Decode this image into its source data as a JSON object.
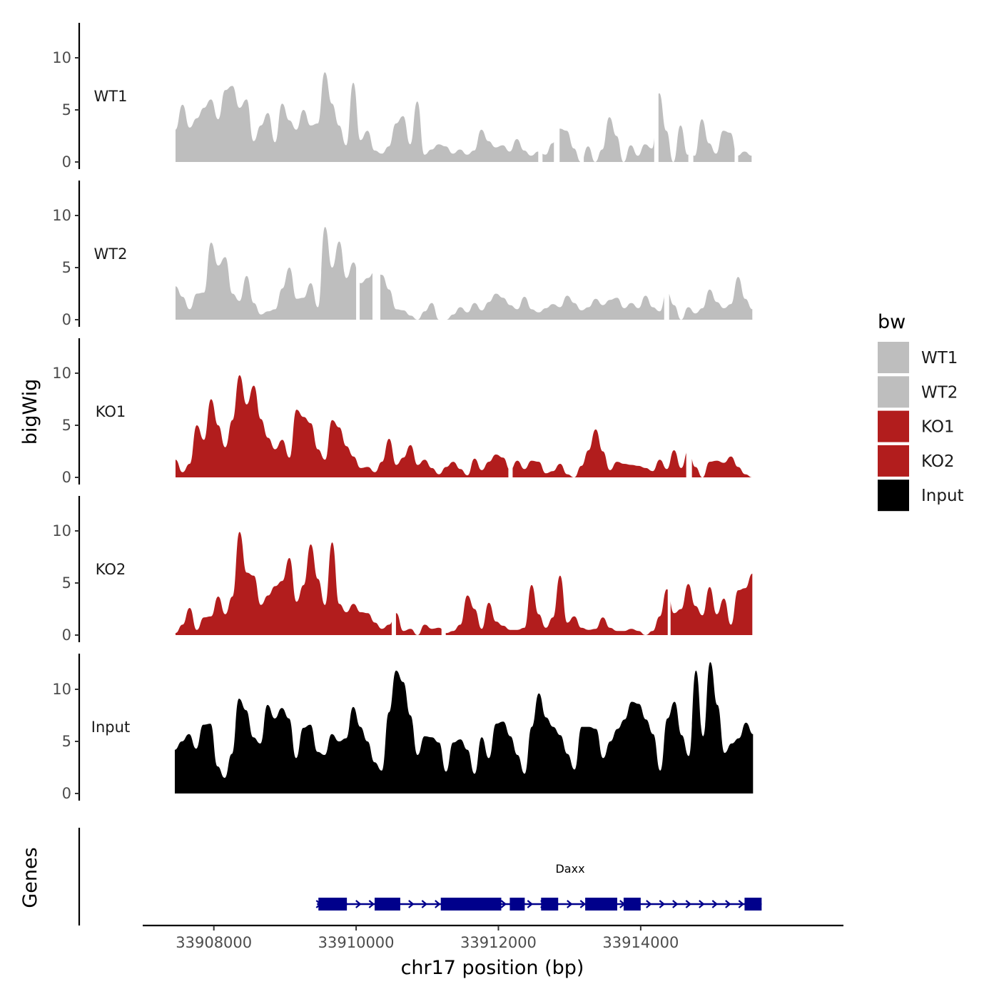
{
  "chart_data": {
    "type": "area",
    "title": "",
    "xlabel": "chr17 position (bp)",
    "ylabel": "bigWig",
    "genes_label": "Genes",
    "xlim": [
      33907000,
      33916850
    ],
    "x_ticks": [
      33908000,
      33910000,
      33912000,
      33914000
    ],
    "x_tick_labels": [
      "33908000",
      "33910000",
      "33912000",
      "33914000"
    ],
    "ylim": [
      0,
      13.5
    ],
    "y_ticks": [
      0,
      5,
      10
    ],
    "y_tick_labels": [
      "0",
      "5",
      "10"
    ],
    "legend": {
      "title": "bw",
      "placement": "right",
      "entries": [
        {
          "label": "WT1",
          "color": "#bebebe"
        },
        {
          "label": "WT2",
          "color": "#bebebe"
        },
        {
          "label": "KO1",
          "color": "#b21d1d"
        },
        {
          "label": "KO2",
          "color": "#b21d1d"
        },
        {
          "label": "Input",
          "color": "#000000"
        }
      ]
    },
    "series": [
      {
        "name": "WT1",
        "color": "#bebebe",
        "x_start": 33907460,
        "x_end": 33915560,
        "values": [
          3.1,
          5.5,
          3.3,
          4.2,
          5.2,
          6.0,
          4.1,
          6.9,
          7.3,
          5.2,
          6.0,
          2.0,
          3.5,
          4.7,
          1.9,
          5.6,
          4.0,
          3.1,
          5.0,
          3.5,
          3.7,
          8.6,
          5.6,
          3.5,
          1.6,
          7.6,
          2.1,
          3.0,
          1.1,
          0.8,
          1.5,
          3.7,
          4.4,
          1.7,
          5.8,
          0.7,
          1.2,
          1.7,
          1.5,
          0.8,
          1.2,
          0.7,
          1.1,
          3.1,
          2.0,
          1.4,
          1.6,
          1.0,
          2.2,
          1.1,
          0.6,
          1.0,
          0.7,
          1.8,
          3.2,
          3.0,
          1.3,
          0.0,
          1.5,
          0.0,
          1.2,
          4.3,
          2.5,
          0.0,
          1.6,
          0.6,
          1.7,
          1.3,
          6.6,
          3.0,
          0.0,
          3.5,
          0.7,
          0.6,
          4.1,
          1.8,
          0.8,
          3.0,
          2.8,
          0.6,
          1.0,
          0.6
        ],
        "gaps": [
          [
            33912560,
            33912620
          ],
          [
            33912780,
            33912860
          ],
          [
            33913150,
            33913200
          ],
          [
            33914190,
            33914250
          ],
          [
            33914670,
            33914740
          ],
          [
            33915320,
            33915370
          ]
        ]
      },
      {
        "name": "WT2",
        "color": "#bebebe",
        "x_start": 33907460,
        "x_end": 33915570,
        "values": [
          3.2,
          2.2,
          1.0,
          2.5,
          2.6,
          7.4,
          5.2,
          6.0,
          2.5,
          1.8,
          4.2,
          1.6,
          0.5,
          0.8,
          1.0,
          3.0,
          5.0,
          2.0,
          2.1,
          3.5,
          1.2,
          8.9,
          5.0,
          7.5,
          4.0,
          5.5,
          3.5,
          4.0,
          4.6,
          4.3,
          2.9,
          1.0,
          0.9,
          0.4,
          0.0,
          0.8,
          1.6,
          0.0,
          0.0,
          0.5,
          1.2,
          0.7,
          1.6,
          0.9,
          1.7,
          2.5,
          2.1,
          1.4,
          1.0,
          2.2,
          1.0,
          0.7,
          1.1,
          1.5,
          1.2,
          2.3,
          1.6,
          0.9,
          1.2,
          2.0,
          1.4,
          1.9,
          2.1,
          1.1,
          1.6,
          1.1,
          2.3,
          1.2,
          0.8,
          2.7,
          1.4,
          0.0,
          1.2,
          0.6,
          1.1,
          2.9,
          1.7,
          1.1,
          1.5,
          4.1,
          2.0,
          1.0
        ],
        "gaps": [
          [
            33910000,
            33910050
          ],
          [
            33910230,
            33910340
          ],
          [
            33914330,
            33914400
          ]
        ]
      },
      {
        "name": "KO1",
        "color": "#b21d1d",
        "x_start": 33907460,
        "x_end": 33915570,
        "values": [
          1.7,
          0.5,
          1.3,
          5.0,
          3.6,
          7.5,
          5.0,
          2.9,
          5.5,
          9.8,
          7.0,
          8.8,
          5.6,
          3.8,
          2.7,
          3.6,
          1.9,
          6.5,
          5.8,
          5.2,
          2.7,
          1.7,
          5.5,
          4.8,
          3.0,
          2.0,
          0.9,
          1.0,
          0.5,
          1.5,
          3.7,
          1.2,
          1.9,
          3.1,
          1.2,
          1.7,
          0.9,
          0.3,
          1.0,
          1.5,
          0.8,
          0.2,
          1.8,
          0.7,
          1.5,
          2.2,
          1.9,
          0.7,
          1.6,
          0.8,
          1.6,
          1.5,
          0.4,
          0.6,
          1.3,
          0.3,
          0.0,
          1.1,
          2.6,
          4.6,
          2.5,
          0.7,
          1.5,
          1.3,
          1.2,
          1.1,
          0.9,
          0.6,
          1.7,
          0.8,
          2.6,
          0.9,
          2.6,
          1.0,
          0.0,
          1.5,
          1.6,
          1.4,
          2.0,
          1.0,
          0.3,
          0.0
        ],
        "gaps": [
          [
            33912140,
            33912200
          ],
          [
            33914640,
            33914720
          ],
          [
            33916000,
            33916050
          ]
        ]
      },
      {
        "name": "KO2",
        "color": "#b21d1d",
        "x_start": 33907460,
        "x_end": 33915570,
        "values": [
          0.2,
          1.0,
          2.6,
          0.5,
          1.7,
          1.8,
          3.7,
          2.0,
          3.7,
          9.9,
          6.0,
          5.7,
          2.9,
          3.8,
          4.7,
          5.2,
          7.4,
          3.2,
          4.8,
          8.7,
          5.4,
          2.9,
          8.9,
          3.0,
          2.2,
          3.0,
          2.2,
          2.1,
          1.2,
          0.6,
          1.0,
          2.1,
          0.4,
          0.6,
          0.0,
          1.0,
          0.6,
          0.7,
          0.2,
          0.4,
          1.0,
          3.8,
          2.5,
          0.6,
          3.1,
          1.3,
          0.9,
          0.5,
          0.5,
          0.7,
          4.8,
          2.0,
          0.7,
          1.7,
          5.7,
          1.2,
          1.8,
          0.7,
          0.5,
          0.6,
          1.7,
          0.7,
          0.4,
          0.4,
          0.6,
          0.4,
          0.0,
          0.4,
          1.8,
          4.4,
          2.1,
          2.5,
          4.9,
          2.8,
          1.9,
          4.6,
          2.0,
          3.5,
          1.0,
          4.3,
          4.5,
          5.9
        ],
        "gaps": [
          [
            33910500,
            33910560
          ],
          [
            33911200,
            33911260
          ],
          [
            33914380,
            33914420
          ]
        ]
      },
      {
        "name": "Input",
        "color": "#000000",
        "x_start": 33907450,
        "x_end": 33915580,
        "values": [
          4.2,
          5.0,
          5.7,
          4.3,
          6.6,
          6.7,
          2.6,
          1.5,
          3.8,
          9.1,
          8.0,
          5.4,
          4.8,
          8.5,
          7.2,
          8.2,
          7.2,
          3.4,
          6.3,
          6.6,
          4.0,
          3.7,
          5.7,
          5.0,
          5.3,
          8.3,
          6.4,
          5.0,
          3.0,
          2.2,
          7.8,
          11.8,
          10.7,
          7.5,
          3.7,
          5.5,
          5.4,
          4.9,
          2.1,
          4.9,
          5.2,
          4.2,
          1.9,
          5.4,
          3.4,
          6.7,
          6.9,
          5.5,
          3.7,
          1.9,
          6.4,
          9.6,
          7.3,
          6.4,
          5.6,
          3.8,
          2.3,
          6.4,
          6.4,
          6.2,
          3.4,
          5.0,
          6.2,
          7.1,
          8.8,
          8.6,
          7.1,
          5.7,
          2.2,
          7.2,
          8.8,
          5.6,
          3.6,
          11.8,
          5.5,
          12.6,
          8.5,
          3.9,
          4.8,
          5.3,
          6.8,
          5.7
        ]
      }
    ],
    "gene_track": {
      "name": "Daxx",
      "color": "#00008b",
      "x_start": 33909450,
      "x_end": 33915700,
      "exons": [
        [
          33909470,
          33909870
        ],
        [
          33910260,
          33910620
        ],
        [
          33911190,
          33912040
        ],
        [
          33912160,
          33912370
        ],
        [
          33912600,
          33912840
        ],
        [
          33913220,
          33913670
        ],
        [
          33913760,
          33914000
        ],
        [
          33915460,
          33915700
        ]
      ]
    }
  }
}
